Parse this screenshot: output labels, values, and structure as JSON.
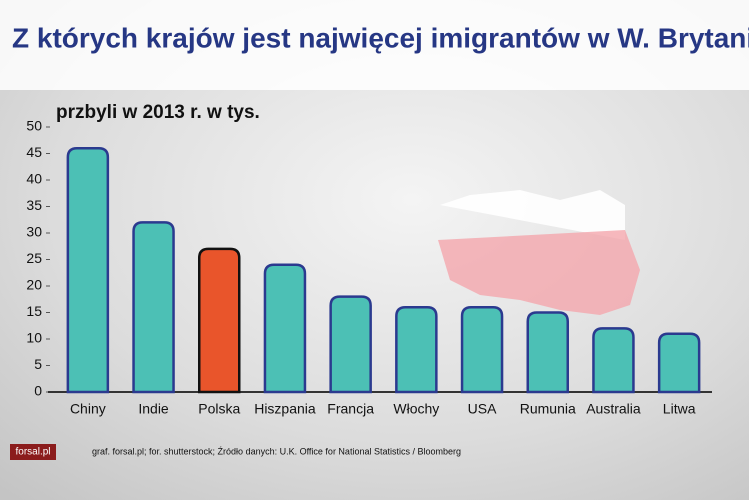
{
  "chart_data": {
    "type": "bar",
    "title": "Z których krajów jest najwięcej imigrantów w W. Brytanii",
    "subtitle": "przbyli w 2013 r. w tys.",
    "categories": [
      "Chiny",
      "Indie",
      "Polska",
      "Hiszpania",
      "Francja",
      "Włochy",
      "USA",
      "Rumunia",
      "Australia",
      "Litwa"
    ],
    "values": [
      46,
      32,
      27,
      24,
      18,
      16,
      16,
      15,
      12,
      11
    ],
    "colors": [
      "#4cc0b5",
      "#4cc0b5",
      "#e9552b",
      "#4cc0b5",
      "#4cc0b5",
      "#4cc0b5",
      "#4cc0b5",
      "#4cc0b5",
      "#4cc0b5",
      "#4cc0b5"
    ],
    "ylim": [
      0,
      50
    ],
    "yticks": [
      0,
      5,
      10,
      15,
      20,
      25,
      30,
      35,
      40,
      45,
      50
    ],
    "source": "graf. forsal.pl; for. shutterstock;  Źródło danych:  U.K. Office for National Statistics / Bloomberg",
    "logo": "forsal.pl"
  }
}
